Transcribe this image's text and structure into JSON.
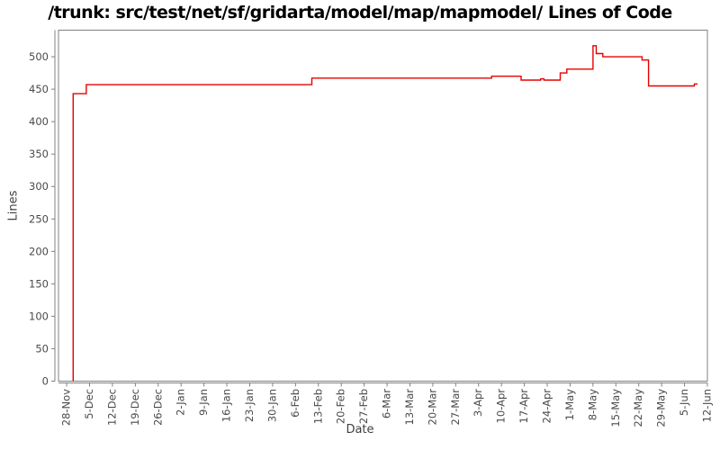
{
  "chart_data": {
    "type": "line",
    "title": "/trunk: src/test/net/sf/gridarta/model/map/mapmodel/ Lines of Code",
    "xlabel": "Date",
    "ylabel": "Lines",
    "legend": "none",
    "grid": false,
    "series_name": "Lines of Code",
    "colors": {
      "line": "#e60000",
      "axis": "#808080",
      "tick_text": "#4a4a4a",
      "title_text": "#000000",
      "background": "#ffffff"
    },
    "y_ticks": [
      0,
      50,
      100,
      150,
      200,
      250,
      300,
      350,
      400,
      450,
      500
    ],
    "ylim": [
      0,
      541
    ],
    "x_tick_labels": [
      "28-Nov",
      "5-Dec",
      "12-Dec",
      "19-Dec",
      "26-Dec",
      "2-Jan",
      "9-Jan",
      "16-Jan",
      "23-Jan",
      "30-Jan",
      "6-Feb",
      "13-Feb",
      "20-Feb",
      "27-Feb",
      "6-Mar",
      "13-Mar",
      "20-Mar",
      "27-Mar",
      "3-Apr",
      "10-Apr",
      "17-Apr",
      "24-Apr",
      "1-May",
      "8-May",
      "15-May",
      "22-May",
      "29-May",
      "5-Jun",
      "12-Jun"
    ],
    "x_tick_interval_days": 7,
    "xlim_days": [
      -2.5,
      196
    ],
    "points_days_value": [
      [
        2,
        0
      ],
      [
        2,
        443
      ],
      [
        6,
        443
      ],
      [
        6,
        457
      ],
      [
        75,
        457
      ],
      [
        75,
        467
      ],
      [
        130,
        467
      ],
      [
        130,
        470
      ],
      [
        139,
        470
      ],
      [
        139,
        464
      ],
      [
        145,
        464
      ],
      [
        145,
        466
      ],
      [
        146,
        466
      ],
      [
        146,
        464
      ],
      [
        151,
        464
      ],
      [
        151,
        475
      ],
      [
        153,
        475
      ],
      [
        153,
        481
      ],
      [
        161,
        481
      ],
      [
        161,
        517
      ],
      [
        162,
        517
      ],
      [
        162,
        505
      ],
      [
        164,
        505
      ],
      [
        164,
        500
      ],
      [
        176,
        500
      ],
      [
        176,
        495
      ],
      [
        178,
        495
      ],
      [
        178,
        455
      ],
      [
        192,
        455
      ],
      [
        192,
        458
      ],
      [
        193,
        458
      ]
    ]
  }
}
